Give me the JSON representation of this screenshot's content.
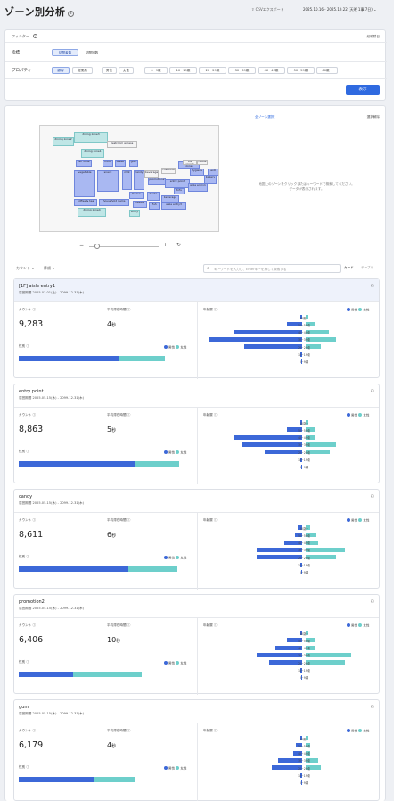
{
  "header": {
    "title": "ゾーン別分析",
    "csv": "CSVエクスポート",
    "date_range": "2025.10.16 - 2025.10.22 (天明 1事 7日) ⌄"
  },
  "filter": {
    "label": "フィルター",
    "toggle": "絞助隣日",
    "metric_label": "指標",
    "metric_options": [
      "訪問者数",
      "訪問回数"
    ],
    "property_label": "プロパティ",
    "property_options": [
      "顧客",
      "従業員",
      "男性",
      "女性",
      "0~9歳",
      "10~19歳",
      "20~29歳",
      "30~39歳",
      "40~49歳",
      "50~59歳",
      "60歳~"
    ],
    "show_button": "表示"
  },
  "map": {
    "select_all": "全ゾーン選択",
    "deselect_all": "選択解除",
    "hint": "地図上のゾーンをクリックまたはキーワードで検索してください。\nデータが表示されます。",
    "zones": [
      "dining zone3",
      "restroom access",
      "dining zone2",
      "dining zone1",
      "fair zone",
      "fruits",
      "bread",
      "gum",
      "beverage",
      "checkout",
      "customer zone",
      "promotion2",
      "candy",
      "milk",
      "entry point",
      "snack",
      "bakery",
      "tofu",
      "beverage",
      "vegetable",
      "frozen",
      "bento",
      "freezer",
      "fish",
      "coffee & tea",
      "household items",
      "entry",
      "dining zone4",
      "aisle entry3",
      "aisle entry1",
      "ice cream",
      "tissue",
      "hygiene",
      "exit"
    ]
  },
  "controls": {
    "count_sort": "カウント ⌄",
    "sort_label": "降順 ⌄",
    "search_placeholder": "キーワードを入力し、Enterキーを押して検索する",
    "view_card": "カード",
    "view_table": "テーブル"
  },
  "labels": {
    "count": "カウント",
    "avg_stay": "平均滞在時間",
    "gender": "性別",
    "age": "年齢層",
    "male": "男性",
    "female": "女性",
    "seconds": "秒"
  },
  "age_labels": [
    "60歳~",
    "50~59歳",
    "40~49歳",
    "30~39歳",
    "20~29歳",
    "10~19歳",
    "0~9歳"
  ],
  "colors": {
    "male": "#3c68d8",
    "female": "#6dcfcb",
    "accent": "#2f6ae0"
  },
  "zones": [
    {
      "name": "[1F] aisle entry1",
      "period": "運営期間 2025.03.01(土) - 2099.12.31(木)",
      "count": "9,283",
      "stay": "4",
      "male_share": 0.69,
      "ages": [
        [
          0.02,
          0.01
        ],
        [
          0.1,
          0.06
        ],
        [
          0.45,
          0.15
        ],
        [
          0.62,
          0.2
        ],
        [
          0.38,
          0.1
        ],
        [
          0.01,
          0
        ],
        [
          0.005,
          0
        ]
      ]
    },
    {
      "name": "entry point",
      "period": "運営期間 2025.05.15(木) - 2099.12.31(木)",
      "count": "8,863",
      "stay": "5",
      "male_share": 0.72,
      "ages": [
        [
          0.02,
          0.01
        ],
        [
          0.1,
          0.06
        ],
        [
          0.45,
          0.06
        ],
        [
          0.4,
          0.2
        ],
        [
          0.25,
          0.16
        ],
        [
          0.01,
          0
        ],
        [
          0.005,
          0
        ]
      ]
    },
    {
      "name": "candy",
      "period": "運営期間 2025.05.15(木) - 2099.12.31(木)",
      "count": "8,611",
      "stay": "6",
      "male_share": 0.69,
      "ages": [
        [
          0.03,
          0.03
        ],
        [
          0.05,
          0.07
        ],
        [
          0.12,
          0.08
        ],
        [
          0.3,
          0.26
        ],
        [
          0.3,
          0.2
        ],
        [
          0.01,
          0
        ],
        [
          0.005,
          0
        ]
      ]
    },
    {
      "name": "promotion2",
      "period": "運営期間 2025.05.15(木) - 2099.12.31(木)",
      "count": "6,406",
      "stay": "10",
      "male_share": 0.44,
      "ages": [
        [
          0.02,
          0.02
        ],
        [
          0.1,
          0.06
        ],
        [
          0.18,
          0.06
        ],
        [
          0.3,
          0.3
        ],
        [
          0.22,
          0.26
        ],
        [
          0.02,
          0
        ],
        [
          0.005,
          0
        ]
      ]
    },
    {
      "name": "gum",
      "period": "運営期間 2025.05.15(木) - 2099.12.31(木)",
      "count": "6,179",
      "stay": "4",
      "male_share": 0.65,
      "ages": [
        [
          0.01,
          0.01
        ],
        [
          0.04,
          0.03
        ],
        [
          0.06,
          0.03
        ],
        [
          0.16,
          0.08
        ],
        [
          0.2,
          0.1
        ],
        [
          0.02,
          0
        ],
        [
          0.005,
          0
        ]
      ]
    }
  ]
}
